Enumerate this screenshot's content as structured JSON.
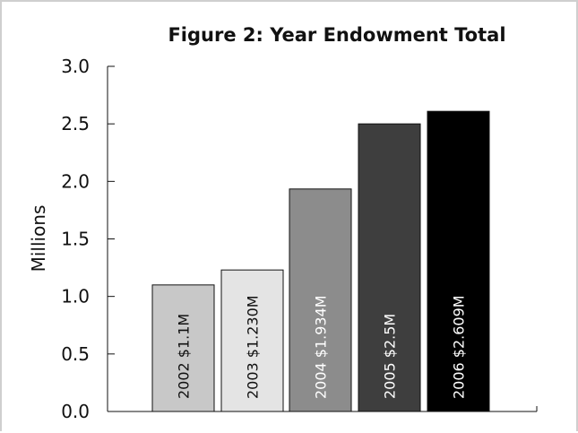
{
  "chart_data": {
    "type": "bar",
    "title": "Figure 2: Year Endowment Total",
    "ylabel": "Millions",
    "xlabel": "",
    "ylim": [
      0,
      3.0
    ],
    "yticks": [
      "0.0",
      "0.5",
      "1.0",
      "1.5",
      "2.0",
      "2.5",
      "3.0"
    ],
    "grid": false,
    "categories": [
      "2002",
      "2003",
      "2004",
      "2005",
      "2006"
    ],
    "values": [
      1.1,
      1.23,
      1.934,
      2.5,
      2.609
    ],
    "bar_labels": [
      "2002  $1.1M",
      "2003  $1.230M",
      "2004  $1.934M",
      "2005  $2.5M",
      "2006  $2.609M"
    ],
    "colors": [
      "#c8c8c8",
      "#e4e4e4",
      "#8c8c8c",
      "#3e3e3e",
      "#000000"
    ],
    "label_colors": [
      "#111111",
      "#111111",
      "#ffffff",
      "#ffffff",
      "#ffffff"
    ]
  }
}
